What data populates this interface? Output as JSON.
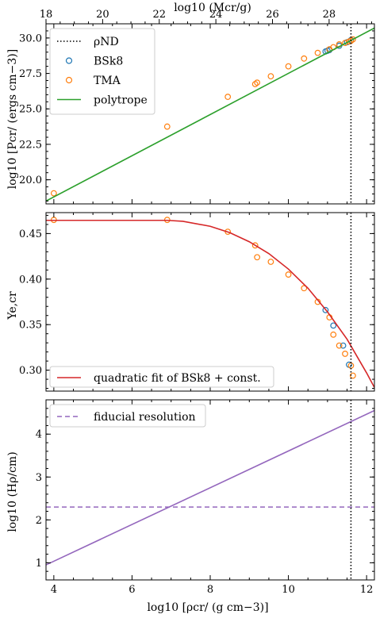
{
  "chart_data": {
    "type": "multi-panel",
    "shared_x": {
      "label": "log10 [ρcr/ (g cm−3)]",
      "range": [
        3.8,
        12.2
      ],
      "ticks": [
        4,
        6,
        8,
        10,
        12
      ],
      "secondary_top_axis": {
        "label": "log10 (Mcr/g)",
        "range": [
          18,
          29.6
        ],
        "ticks": [
          18,
          20,
          22,
          24,
          26,
          28
        ]
      }
    },
    "vertical_marker": {
      "name": "ρND",
      "x": 11.6,
      "style": "dotted",
      "color": "#000000"
    },
    "panels": [
      {
        "id": "pressure",
        "ylabel": "log10 [Pcr/ (ergs cm−3)]",
        "ylim": [
          18.3,
          31.0
        ],
        "yticks": [
          "20.0",
          "22.5",
          "25.0",
          "27.5",
          "30.0"
        ],
        "yticks_values": [
          20.0,
          22.5,
          25.0,
          27.5,
          30.0
        ],
        "legend": {
          "placement": "upper-left",
          "entries": [
            "ρND",
            "BSk8",
            "TMA",
            "polytrope"
          ]
        },
        "series": [
          {
            "name": "BSk8",
            "marker": "open-circle",
            "color": "#1f77b4",
            "x": [
              10.95,
              11.0,
              11.05,
              11.3,
              11.5,
              11.6
            ],
            "y": [
              29.05,
              29.1,
              29.15,
              29.45,
              29.7,
              29.85
            ]
          },
          {
            "name": "TMA",
            "marker": "open-circle",
            "color": "#ff7f0e",
            "x": [
              4.0,
              6.9,
              8.45,
              9.15,
              9.2,
              9.55,
              10.0,
              10.4,
              10.75,
              11.05,
              11.15,
              11.3,
              11.45,
              11.55,
              11.6,
              11.65
            ],
            "y": [
              19.05,
              23.75,
              25.85,
              26.75,
              26.85,
              27.3,
              28.0,
              28.55,
              28.95,
              29.2,
              29.35,
              29.55,
              29.65,
              29.75,
              29.8,
              29.9
            ]
          },
          {
            "name": "polytrope",
            "line": "solid",
            "color": "#2ca02c",
            "x": [
              3.8,
              12.2
            ],
            "y": [
              18.5,
              30.7
            ]
          }
        ]
      },
      {
        "id": "ye",
        "ylabel": "Ye,cr",
        "ylim": [
          0.277,
          0.473
        ],
        "yticks": [
          "0.30",
          "0.35",
          "0.40",
          "0.45"
        ],
        "yticks_values": [
          0.3,
          0.35,
          0.4,
          0.45
        ],
        "legend": {
          "placement": "lower-left",
          "entries": [
            "quadratic fit of BSk8 + const."
          ]
        },
        "series": [
          {
            "name": "BSk8",
            "marker": "open-circle",
            "color": "#1f77b4",
            "x": [
              10.95,
              11.15,
              11.4,
              11.55
            ],
            "y": [
              0.366,
              0.349,
              0.327,
              0.306
            ]
          },
          {
            "name": "TMA",
            "marker": "open-circle",
            "color": "#ff7f0e",
            "x": [
              4.0,
              6.9,
              8.45,
              9.15,
              9.2,
              9.55,
              10.0,
              10.4,
              10.75,
              11.05,
              11.15,
              11.3,
              11.45,
              11.6,
              11.65
            ],
            "y": [
              0.465,
              0.465,
              0.452,
              0.437,
              0.424,
              0.419,
              0.405,
              0.39,
              0.375,
              0.358,
              0.339,
              0.327,
              0.318,
              0.305,
              0.294
            ]
          },
          {
            "name": "quadratic fit of BSk8 + const.",
            "line": "solid",
            "color": "#d62728",
            "x": [
              3.8,
              6.9,
              7.3,
              8.0,
              8.5,
              9.0,
              9.5,
              10.0,
              10.5,
              11.0,
              11.5,
              12.0,
              12.2
            ],
            "y": [
              0.4645,
              0.4645,
              0.4635,
              0.458,
              0.451,
              0.441,
              0.428,
              0.411,
              0.39,
              0.364,
              0.334,
              0.297,
              0.281
            ]
          }
        ]
      },
      {
        "id": "scale-height",
        "ylabel": "log10 (Hρ/cm)",
        "ylim": [
          0.6,
          4.8
        ],
        "yticks": [
          "1",
          "2",
          "3",
          "4"
        ],
        "yticks_values": [
          1,
          2,
          3,
          4
        ],
        "legend": {
          "placement": "upper-left",
          "entries": [
            "fiducial resolution"
          ]
        },
        "series": [
          {
            "name": "scale height",
            "line": "solid",
            "color": "#9467bd",
            "x": [
              3.8,
              12.2
            ],
            "y": [
              0.95,
              4.55
            ]
          },
          {
            "name": "fiducial resolution",
            "line": "dashed",
            "color": "#9467bd",
            "x": [
              3.8,
              12.2
            ],
            "y": [
              2.3,
              2.3
            ]
          }
        ]
      }
    ]
  }
}
